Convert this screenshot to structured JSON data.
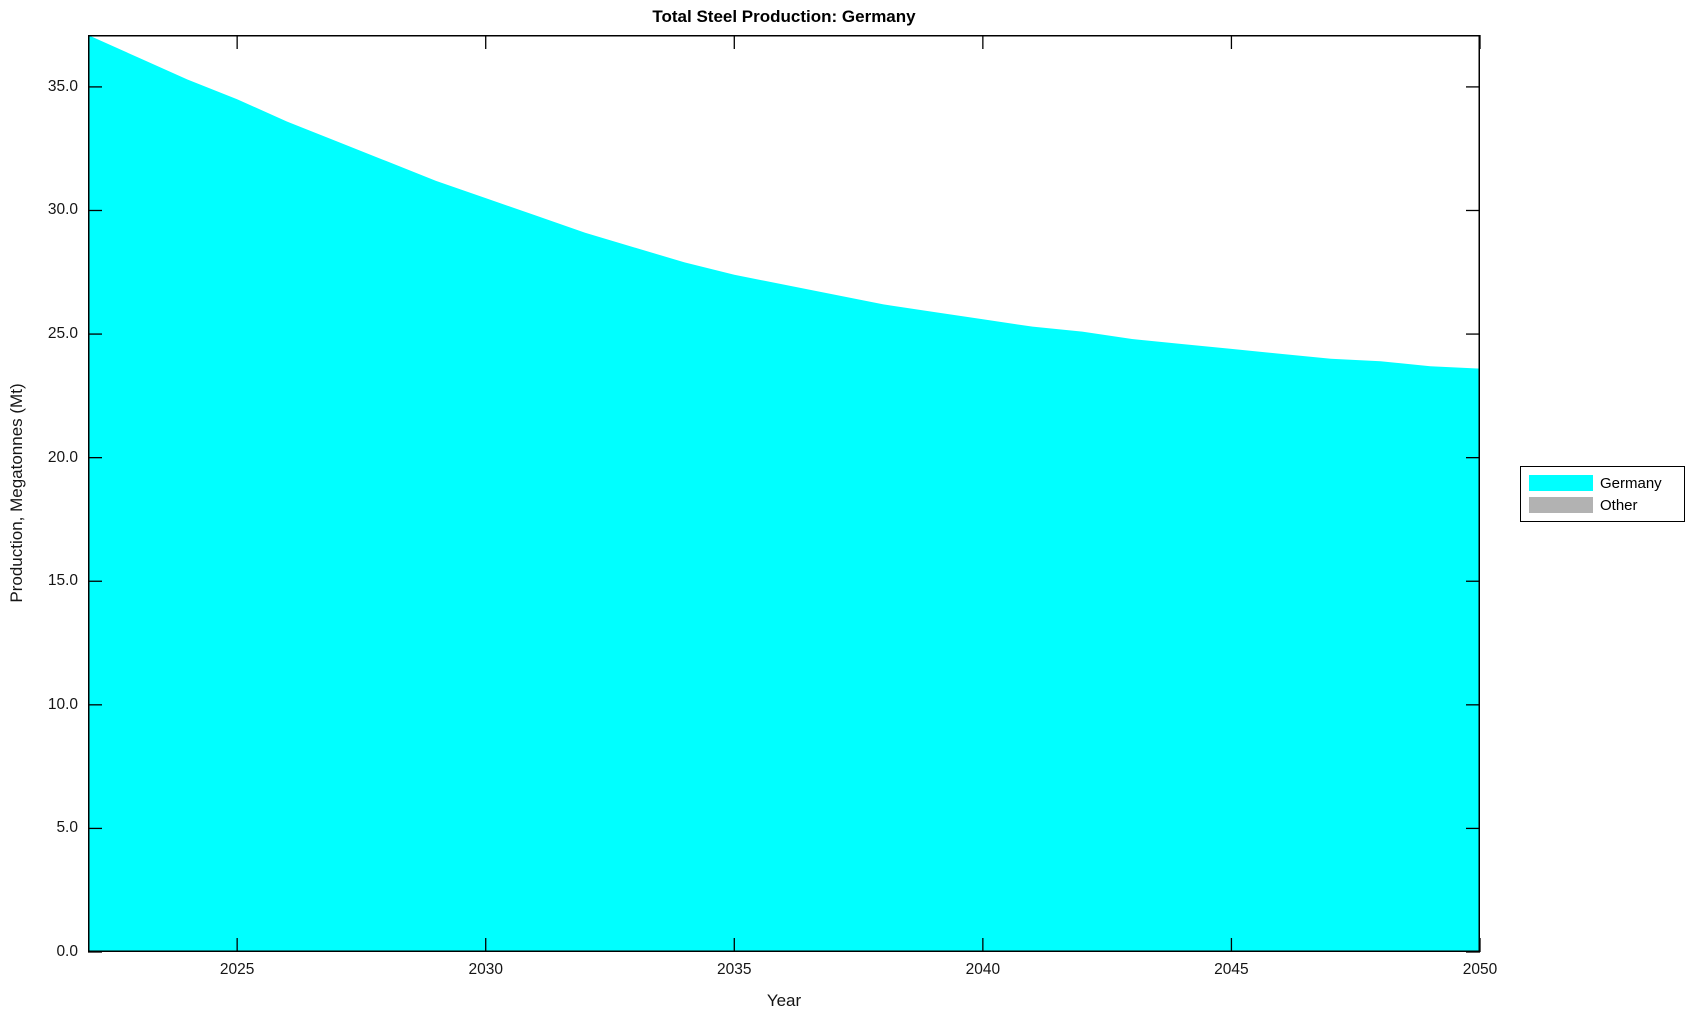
{
  "title": "Total Steel Production: Germany",
  "axes": {
    "xlabel": "Year",
    "ylabel": "Production, Megatonnes (Mt)",
    "x_tick_labels": [
      "2025",
      "2030",
      "2035",
      "2040",
      "2045",
      "2050"
    ],
    "y_tick_labels": [
      "0.0",
      "5.0",
      "10.0",
      "15.0",
      "20.0",
      "25.0",
      "30.0",
      "35.0"
    ]
  },
  "legend": {
    "items": [
      {
        "label": "Germany",
        "color": "#00ffff"
      },
      {
        "label": "Other",
        "color": "#b2b2b2"
      }
    ]
  },
  "colors": {
    "area_germany": "#00ffff",
    "area_other": "#b2b2b2",
    "axis": "#000000",
    "text": "#151515",
    "background": "#ffffff"
  },
  "chart_data": {
    "type": "area",
    "title": "Total Steel Production: Germany",
    "xlabel": "Year",
    "ylabel": "Production, Megatonnes (Mt)",
    "xlim": [
      2022,
      2050
    ],
    "ylim": [
      0,
      37.1
    ],
    "x_ticks": [
      2025,
      2030,
      2035,
      2040,
      2045,
      2050
    ],
    "y_ticks": [
      0,
      5,
      10,
      15,
      20,
      25,
      30,
      35
    ],
    "grid": false,
    "legend_position": "outside-right",
    "stacked": true,
    "x": [
      2022,
      2023,
      2024,
      2025,
      2026,
      2027,
      2028,
      2029,
      2030,
      2031,
      2032,
      2033,
      2034,
      2035,
      2036,
      2037,
      2038,
      2039,
      2040,
      2041,
      2042,
      2043,
      2044,
      2045,
      2046,
      2047,
      2048,
      2049,
      2050
    ],
    "series": [
      {
        "name": "Germany",
        "color": "#00ffff",
        "values": [
          37.1,
          36.2,
          35.3,
          34.5,
          33.6,
          32.8,
          32.0,
          31.2,
          30.5,
          29.8,
          29.1,
          28.5,
          27.9,
          27.4,
          27.0,
          26.6,
          26.2,
          25.9,
          25.6,
          25.3,
          25.1,
          24.8,
          24.6,
          24.4,
          24.2,
          24.0,
          23.9,
          23.7,
          23.6
        ]
      },
      {
        "name": "Other",
        "color": "#b2b2b2",
        "values": [
          0,
          0,
          0,
          0,
          0,
          0,
          0,
          0,
          0,
          0,
          0,
          0,
          0,
          0,
          0,
          0,
          0,
          0,
          0,
          0,
          0,
          0,
          0,
          0,
          0,
          0,
          0,
          0,
          0
        ]
      }
    ]
  }
}
